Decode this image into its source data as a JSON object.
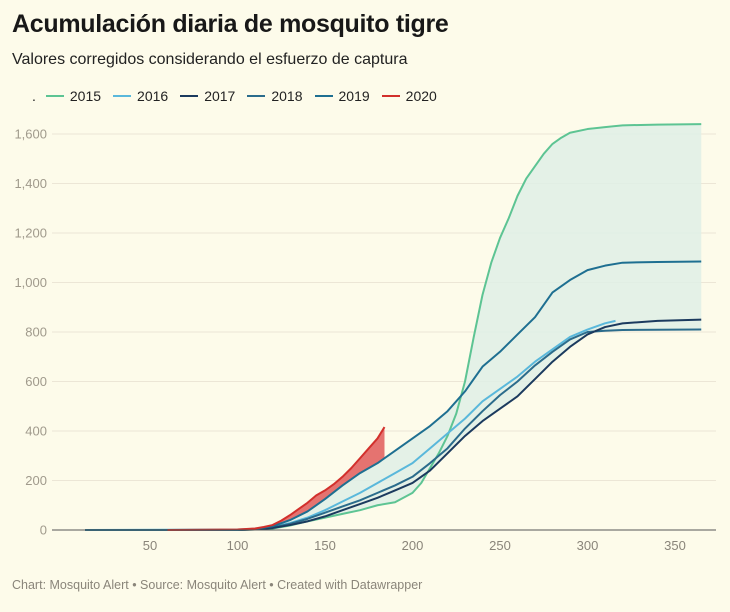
{
  "header": {
    "title": "Acumulación diaria de mosquito tigre",
    "subtitle": "Valores corregidos considerando el esfuerzo de captura",
    "legend_prefix": "."
  },
  "footer": {
    "text": "Chart: Mosquito Alert • Source: Mosquito Alert • Created with Datawrapper"
  },
  "chart_data": {
    "type": "line",
    "title": "Acumulación diaria de mosquito tigre",
    "subtitle": "Valores corregidos considerando el esfuerzo de captura",
    "xlabel": "",
    "ylabel": "",
    "xlim": [
      -6,
      374
    ],
    "ylim": [
      0,
      1600
    ],
    "x_ticks": [
      50,
      100,
      150,
      200,
      250,
      300,
      350
    ],
    "x_tick_labels": [
      "50",
      "100",
      "150",
      "200",
      "250",
      "300",
      "350"
    ],
    "y_ticks": [
      0,
      200,
      400,
      600,
      800,
      1000,
      1200,
      1400,
      1600
    ],
    "y_tick_labels": [
      "0",
      "200",
      "400",
      "600",
      "800",
      "1,000",
      "1,200",
      "1,400",
      "1,600"
    ],
    "grid": true,
    "legend_position": "top-left",
    "range_band": {
      "between": "min/max of 2015–2019",
      "color": "#dfeee6"
    },
    "highlight_band": {
      "between": "2020 and max of previous years",
      "color": "#e05a5a"
    },
    "series": [
      {
        "name": "2015",
        "color": "#5dc493",
        "x": [
          13,
          100,
          110,
          120,
          130,
          140,
          150,
          160,
          170,
          180,
          190,
          200,
          205,
          210,
          215,
          220,
          225,
          230,
          235,
          240,
          245,
          250,
          255,
          260,
          265,
          270,
          275,
          280,
          285,
          290,
          300,
          310,
          320,
          340,
          365
        ],
        "y": [
          0,
          0,
          2,
          6,
          18,
          35,
          50,
          65,
          80,
          100,
          112,
          150,
          190,
          250,
          310,
          380,
          470,
          600,
          780,
          950,
          1080,
          1180,
          1260,
          1350,
          1420,
          1470,
          1520,
          1560,
          1585,
          1605,
          1620,
          1628,
          1635,
          1638,
          1640
        ]
      },
      {
        "name": "2016",
        "color": "#5ab8db",
        "x": [
          13,
          100,
          110,
          120,
          130,
          140,
          150,
          160,
          170,
          180,
          190,
          200,
          210,
          220,
          230,
          240,
          250,
          260,
          270,
          280,
          290,
          300,
          310,
          316
        ],
        "y": [
          0,
          2,
          5,
          12,
          28,
          50,
          80,
          115,
          150,
          190,
          230,
          270,
          330,
          390,
          450,
          520,
          570,
          620,
          680,
          730,
          780,
          810,
          835,
          845
        ]
      },
      {
        "name": "2017",
        "color": "#1b3a5e",
        "x": [
          13,
          100,
          110,
          120,
          130,
          140,
          150,
          160,
          170,
          180,
          190,
          200,
          210,
          220,
          230,
          240,
          250,
          260,
          270,
          280,
          290,
          300,
          310,
          320,
          340,
          365
        ],
        "y": [
          0,
          0,
          2,
          8,
          20,
          35,
          55,
          80,
          105,
          130,
          160,
          190,
          240,
          310,
          380,
          440,
          490,
          540,
          610,
          680,
          740,
          790,
          820,
          835,
          845,
          850
        ]
      },
      {
        "name": "2018",
        "color": "#2b6c8c",
        "x": [
          13,
          100,
          110,
          120,
          130,
          140,
          150,
          160,
          170,
          180,
          190,
          200,
          210,
          220,
          230,
          240,
          250,
          260,
          270,
          280,
          290,
          300,
          310,
          320,
          340,
          365
        ],
        "y": [
          0,
          0,
          3,
          10,
          25,
          45,
          70,
          95,
          120,
          150,
          180,
          215,
          270,
          330,
          410,
          480,
          545,
          600,
          665,
          720,
          770,
          800,
          805,
          808,
          809,
          810
        ]
      },
      {
        "name": "2019",
        "color": "#1e6f91",
        "x": [
          13,
          100,
          110,
          120,
          130,
          140,
          150,
          160,
          170,
          180,
          190,
          200,
          210,
          220,
          230,
          240,
          250,
          260,
          270,
          280,
          290,
          300,
          310,
          320,
          340,
          365
        ],
        "y": [
          0,
          0,
          4,
          15,
          40,
          75,
          125,
          180,
          230,
          270,
          320,
          370,
          420,
          480,
          560,
          660,
          720,
          790,
          860,
          960,
          1010,
          1050,
          1068,
          1080,
          1083,
          1085
        ]
      },
      {
        "name": "2020",
        "color": "#d2302c",
        "x": [
          60,
          100,
          110,
          115,
          120,
          125,
          130,
          135,
          140,
          145,
          150,
          155,
          160,
          165,
          170,
          175,
          180,
          184
        ],
        "y": [
          0,
          2,
          6,
          12,
          20,
          38,
          60,
          85,
          110,
          140,
          160,
          185,
          215,
          250,
          290,
          330,
          370,
          416
        ]
      }
    ]
  }
}
